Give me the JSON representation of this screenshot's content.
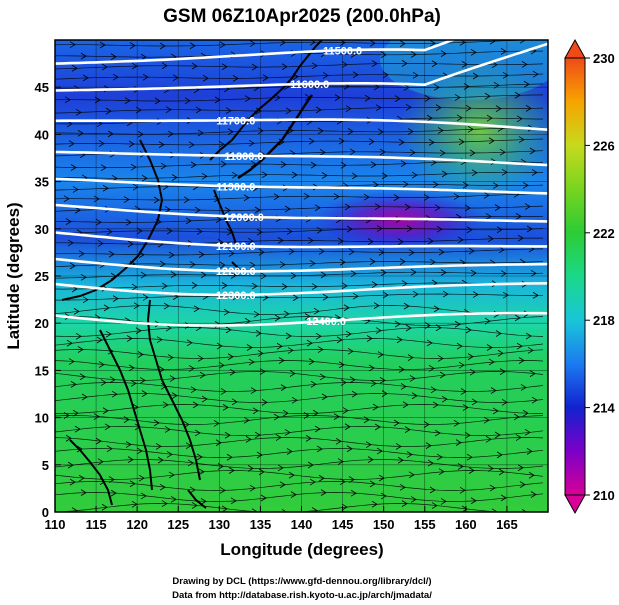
{
  "title": "GSM 06Z10Apr2025 (200.0hPa)",
  "xlabel": "Longitude (degrees)",
  "ylabel": "Latitude  (degrees)",
  "credits": [
    "Drawing by DCL (https://www.gfd-dennou.org/library/dcl/)",
    "Data from http://database.rish.kyoto-u.ac.jp/arch/jmadata/"
  ],
  "map": {
    "lon_range": [
      110,
      170
    ],
    "lat_range": [
      0,
      50
    ],
    "lon_ticks": [
      "110",
      "115",
      "120",
      "125",
      "130",
      "135",
      "140",
      "145",
      "150",
      "155",
      "160",
      "165"
    ],
    "lat_ticks": [
      "0",
      "5",
      "10",
      "15",
      "20",
      "25",
      "30",
      "35",
      "40",
      "45"
    ],
    "colorbar": {
      "min": 210,
      "max": 230,
      "ticks": [
        "230",
        "226",
        "222",
        "218",
        "214",
        "210"
      ],
      "colors": [
        "#d80096",
        "#7c00c8",
        "#1222cf",
        "#1c7af0",
        "#19c6d8",
        "#1bd889",
        "#2ccc35",
        "#78d41f",
        "#c6da1e",
        "#f7a400",
        "#f04a18"
      ]
    },
    "contours": [
      {
        "label": "11500.0",
        "lat_west": 47.5,
        "lat_east": 48.2
      },
      {
        "label": "11600.0",
        "lat_west": 44.3,
        "lat_east": 44.8
      },
      {
        "label": "11700.0",
        "lat_west": 40.8,
        "lat_east": 41.2
      },
      {
        "label": "11800.0",
        "lat_west": 37.3,
        "lat_east": 37.6
      },
      {
        "label": "11900.0",
        "lat_west": 34.4,
        "lat_east": 34.6
      },
      {
        "label": "12000.0",
        "lat_west": 31.7,
        "lat_east": 31.5
      },
      {
        "label": "12100.0",
        "lat_west": 29.0,
        "lat_east": 28.6
      },
      {
        "label": "12200.0",
        "lat_west": 26.5,
        "lat_east": 26.4
      },
      {
        "label": "12300.0",
        "lat_west": 24.2,
        "lat_east": 24.0
      },
      {
        "label": "12400.0",
        "lat_west": 21.2,
        "lat_east": 20.5
      }
    ]
  }
}
